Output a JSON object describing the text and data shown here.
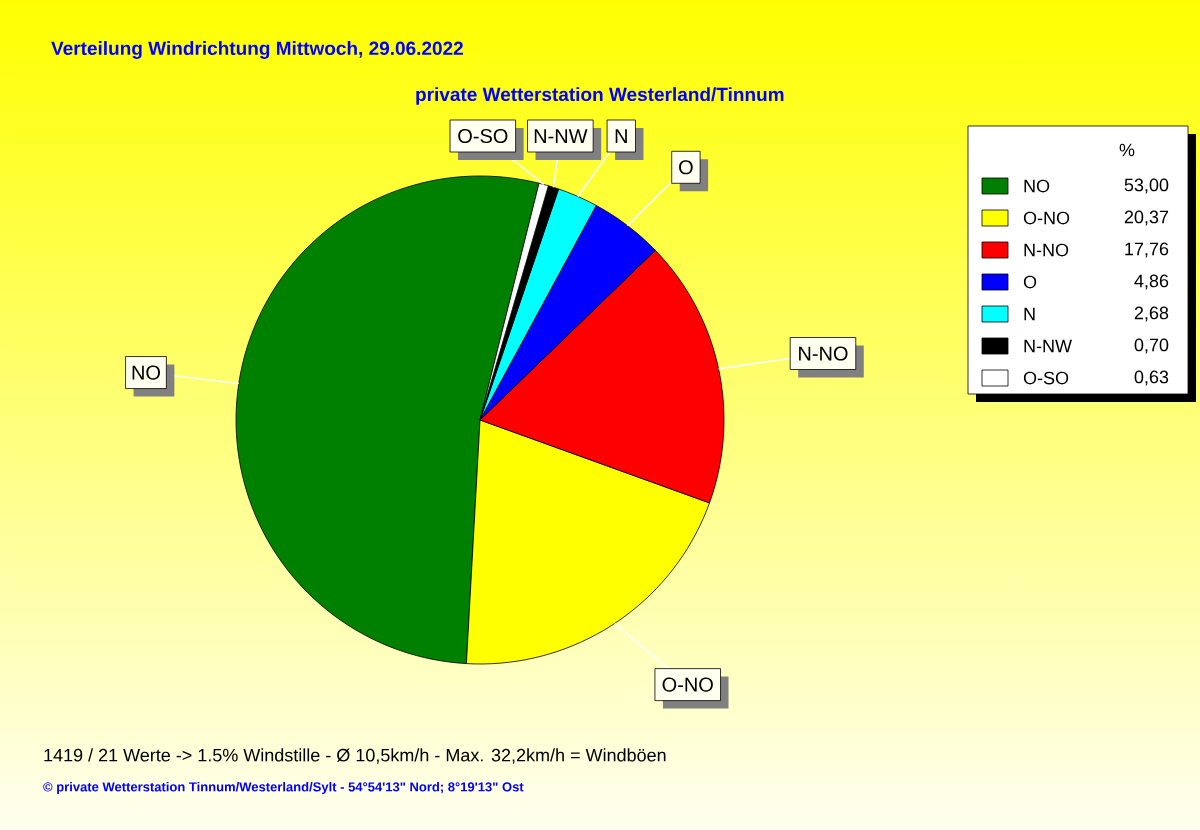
{
  "chart_data": {
    "type": "pie",
    "title": "Verteilung Windrichtung   Mittwoch, 29.06.2022",
    "subtitle": "private Wetterstation Westerland/Tinnum",
    "categories": [
      "NO",
      "O-NO",
      "N-NO",
      "O",
      "N",
      "N-NW",
      "O-SO"
    ],
    "values": [
      53.0,
      20.37,
      17.76,
      4.86,
      2.68,
      0.7,
      0.63
    ],
    "value_labels": [
      "53,00",
      "20,37",
      "17,76",
      "4,86",
      "2,68",
      "0,70",
      "0,63"
    ],
    "colors": [
      "#008000",
      "#ffff00",
      "#ff0000",
      "#0000ff",
      "#00ffff",
      "#000000",
      "#ffffff"
    ],
    "legend": "top right",
    "legend_title": "%",
    "annotations": [
      "1419 / 21 Werte  -> 1.5% Windstille   -   Ø 10,5km/h  -  Max. 32,2km/h = Windböen",
      "© private Wetterstation Tinnum/Westerland/Sylt  -  54°54'13\" Nord; 8°19'13\" Ost"
    ]
  }
}
